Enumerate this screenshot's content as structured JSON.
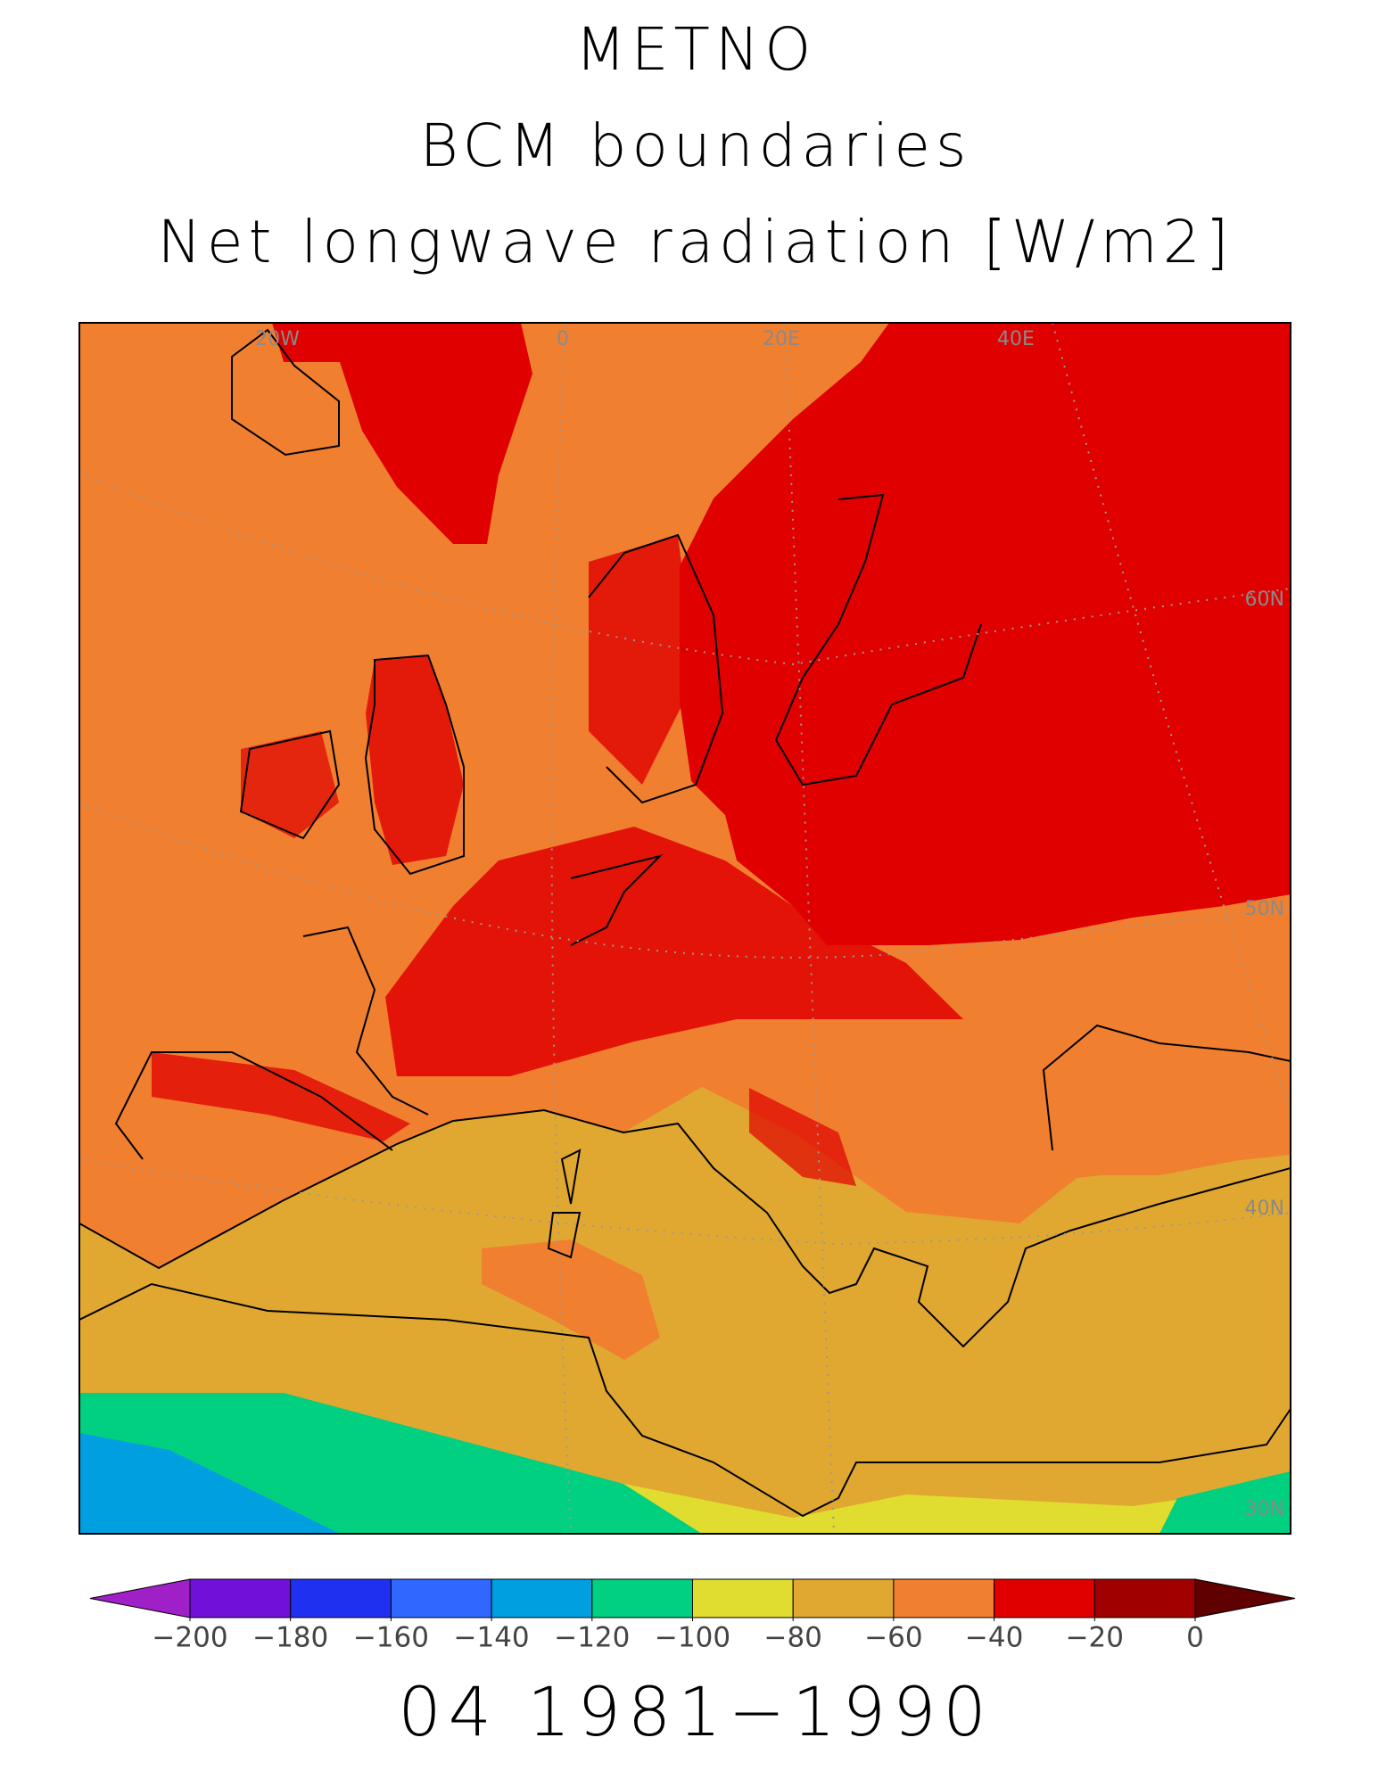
{
  "title_lines": [
    "METNO",
    "BCM boundaries",
    "Net longwave radiation [W/m2]"
  ],
  "map": {
    "grid_labels": [
      "20W",
      "0",
      "20E",
      "40E",
      "60N",
      "50N",
      "40N",
      "30N"
    ]
  },
  "colorbar": {
    "ticks": [
      {
        "value": -200,
        "label": "−200"
      },
      {
        "value": -180,
        "label": "−180"
      },
      {
        "value": -160,
        "label": "−160"
      },
      {
        "value": -140,
        "label": "−140"
      },
      {
        "value": -120,
        "label": "−120"
      },
      {
        "value": -100,
        "label": "−100"
      },
      {
        "value": -80,
        "label": "−80"
      },
      {
        "value": -60,
        "label": "−60"
      },
      {
        "value": -40,
        "label": "−40"
      },
      {
        "value": -20,
        "label": "−20"
      },
      0
    ],
    "colors": [
      "#a020c8",
      "#7010d8",
      "#2030f0",
      "#3068ff",
      "#00a0e0",
      "#00d080",
      "#e0dc30",
      "#e0a830",
      "#f08030",
      "#e00000",
      "#a00000",
      "#600000"
    ]
  },
  "footer": "04 1981−1990"
}
